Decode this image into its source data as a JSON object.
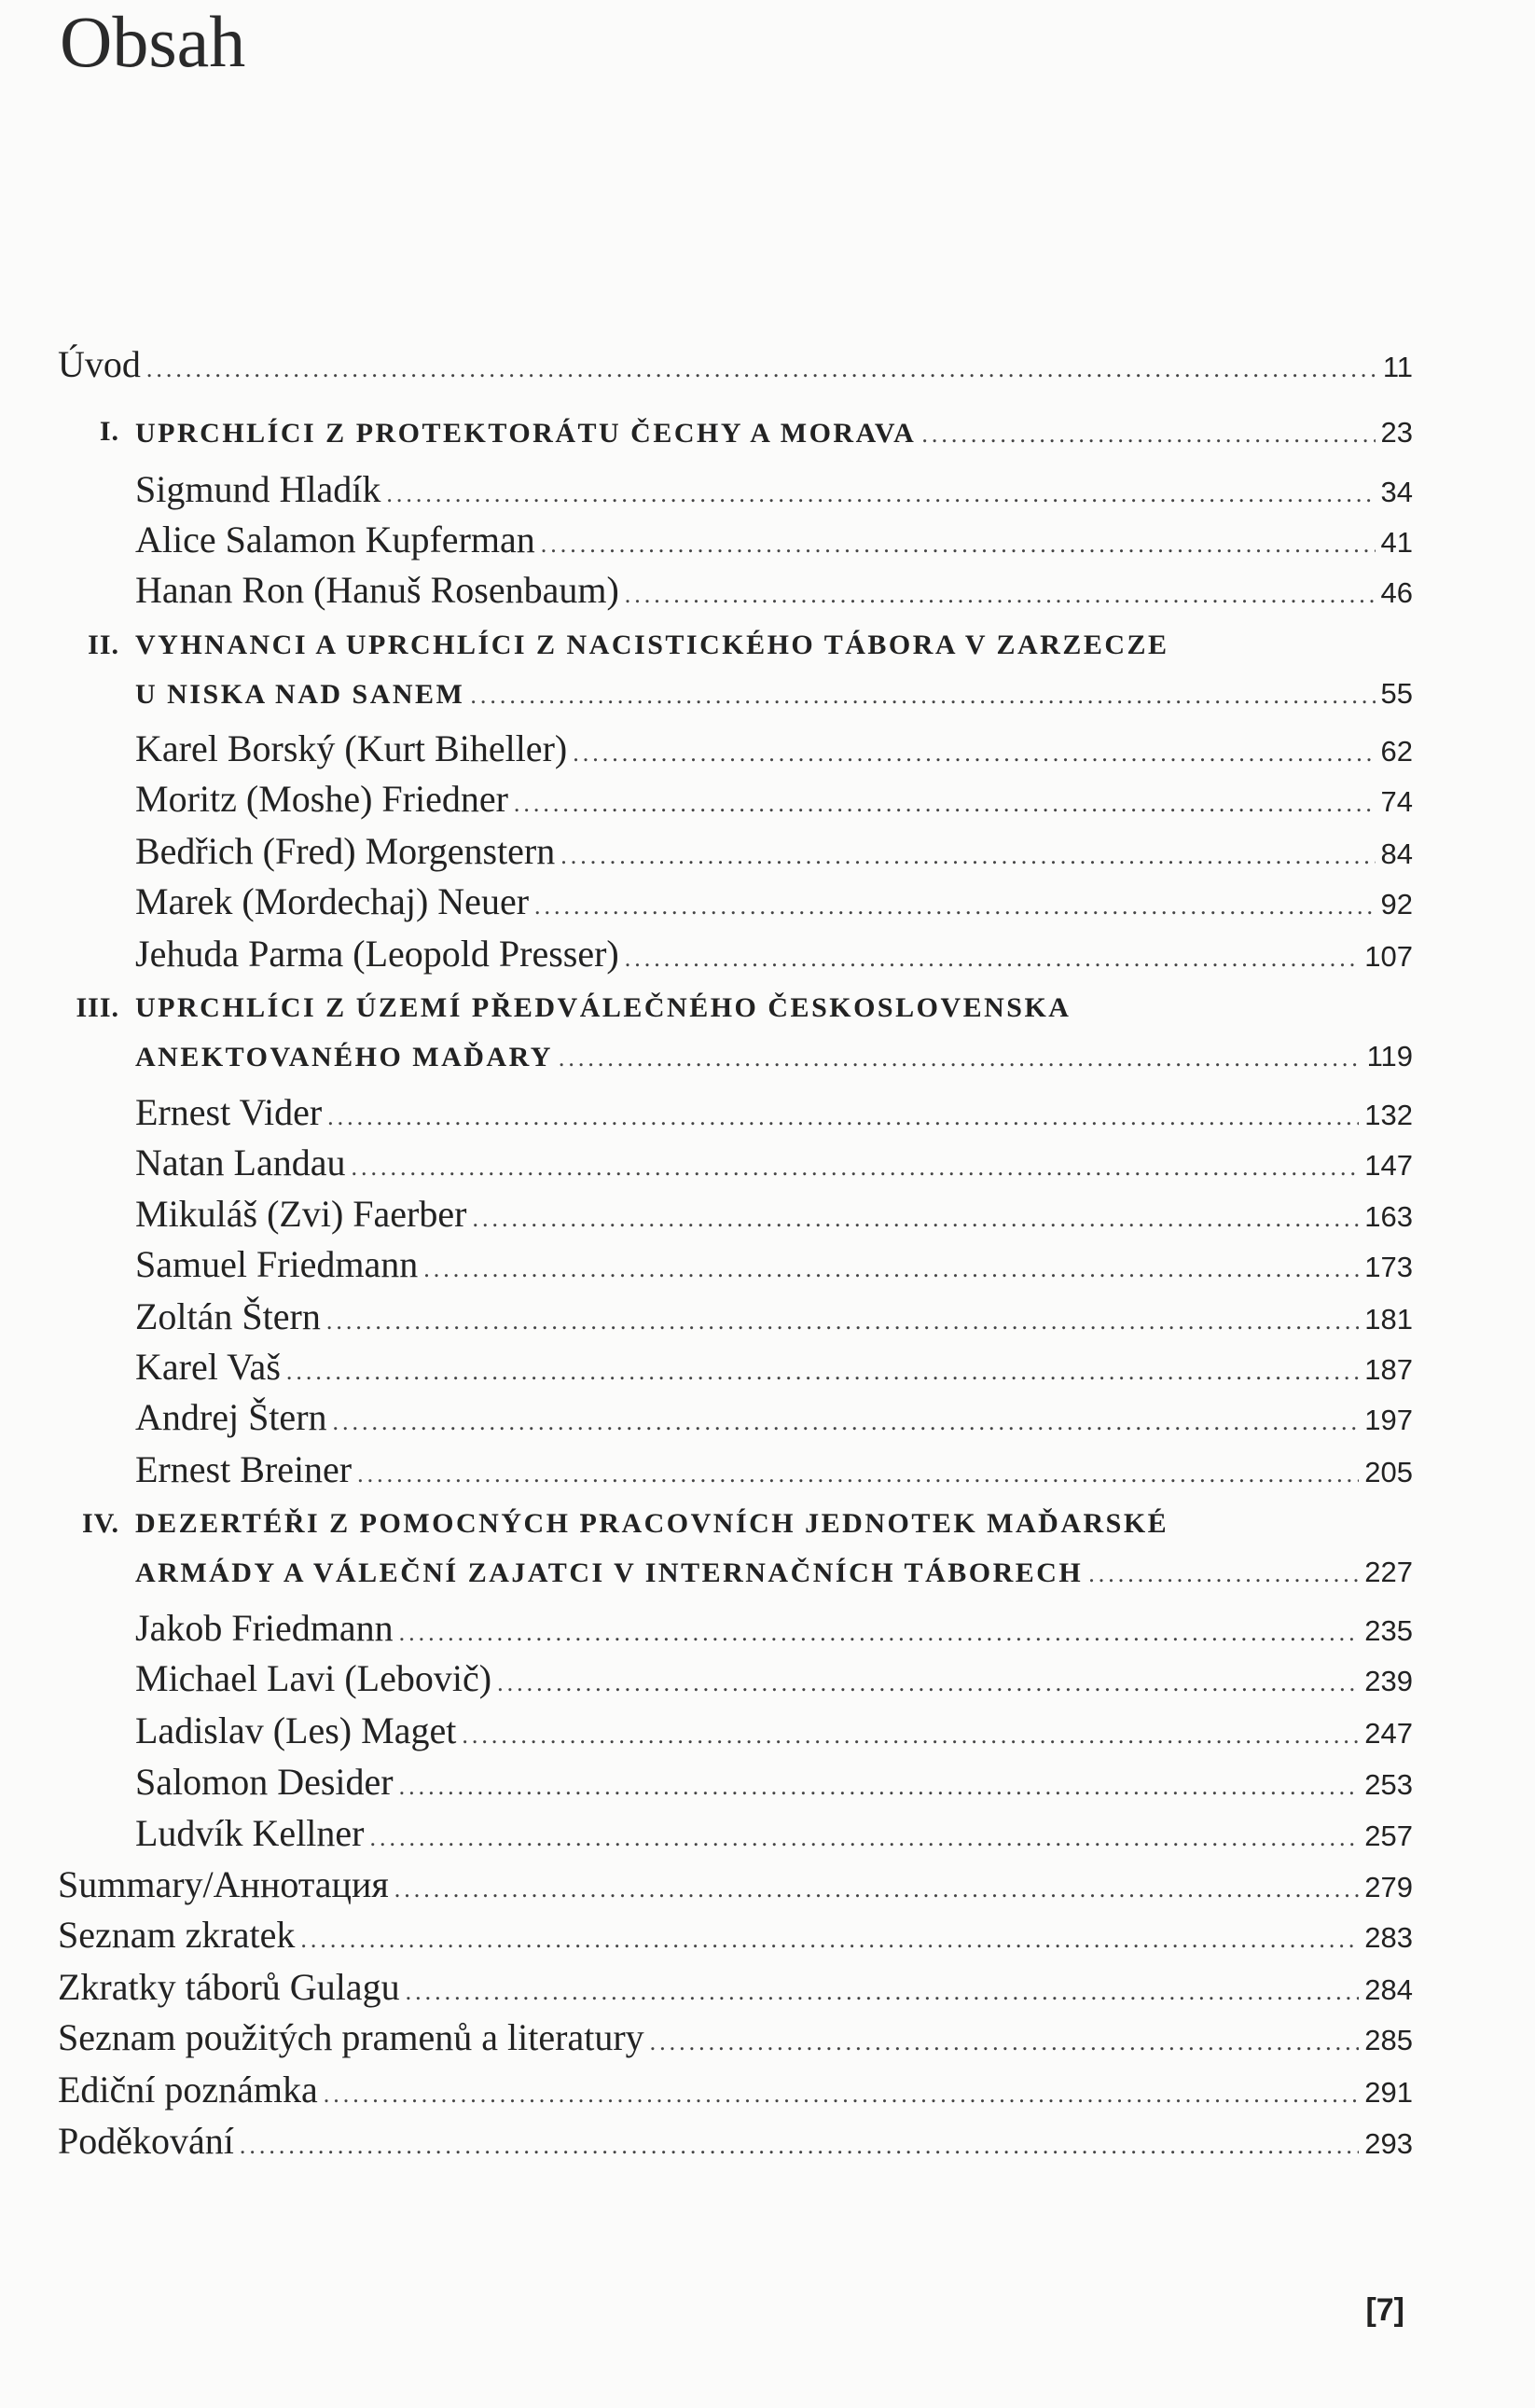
{
  "page_title": "Obsah",
  "folio": "[7]",
  "entries": [
    {
      "level": "top",
      "text": "Úvod",
      "page": "11"
    },
    {
      "level": "section",
      "numeral": "I.",
      "text": "UPRCHLÍCI Z PROTEKTORÁTU ČECHY A MORAVA",
      "page": "23"
    },
    {
      "level": "sub",
      "text": "Sigmund Hladík",
      "page": "34"
    },
    {
      "level": "sub",
      "text": "Alice Salamon Kupferman",
      "page": "41"
    },
    {
      "level": "sub",
      "text": "Hanan Ron (Hanuš Rosenbaum)",
      "page": "46"
    },
    {
      "level": "section",
      "numeral": "II.",
      "text": "VYHNANCI A UPRCHLÍCI Z NACISTICKÉHO TÁBORA V ZARZECZE",
      "page": ""
    },
    {
      "level": "section-cont",
      "text": "U NISKA NAD SANEM",
      "page": "55"
    },
    {
      "level": "sub",
      "text": "Karel Borský (Kurt Biheller)",
      "page": "62"
    },
    {
      "level": "sub",
      "text": "Moritz (Moshe) Friedner",
      "page": "74"
    },
    {
      "level": "sub",
      "text": "Bedřich (Fred) Morgenstern",
      "page": "84"
    },
    {
      "level": "sub",
      "text": "Marek (Mordechaj) Neuer",
      "page": "92"
    },
    {
      "level": "sub",
      "text": "Jehuda Parma (Leopold Presser)",
      "page": "107"
    },
    {
      "level": "section",
      "numeral": "III.",
      "text": "UPRCHLÍCI Z ÚZEMÍ PŘEDVÁLEČNÉHO ČESKOSLOVENSKA",
      "page": ""
    },
    {
      "level": "section-cont",
      "text": "ANEKTOVANÉHO MAĎARY",
      "page": "119"
    },
    {
      "level": "sub",
      "text": "Ernest Vider",
      "page": "132"
    },
    {
      "level": "sub",
      "text": "Natan Landau",
      "page": "147"
    },
    {
      "level": "sub",
      "text": "Mikuláš (Zvi) Faerber",
      "page": "163"
    },
    {
      "level": "sub",
      "text": "Samuel Friedmann",
      "page": "173"
    },
    {
      "level": "sub",
      "text": "Zoltán Štern",
      "page": "181"
    },
    {
      "level": "sub",
      "text": "Karel Vaš",
      "page": "187"
    },
    {
      "level": "sub",
      "text": "Andrej Štern",
      "page": "197"
    },
    {
      "level": "sub",
      "text": "Ernest Breiner",
      "page": "205"
    },
    {
      "level": "section",
      "numeral": "IV.",
      "text": "DEZERTÉŘI Z POMOCNÝCH PRACOVNÍCH JEDNOTEK MAĎARSKÉ",
      "page": ""
    },
    {
      "level": "section-cont",
      "text": "ARMÁDY A VÁLEČNÍ ZAJATCI V INTERNAČNÍCH TÁBORECH",
      "page": "227"
    },
    {
      "level": "sub",
      "text": "Jakob Friedmann",
      "page": "235"
    },
    {
      "level": "sub",
      "text": "Michael Lavi (Lebovič)",
      "page": "239"
    },
    {
      "level": "sub",
      "text": "Ladislav (Les) Maget",
      "page": "247"
    },
    {
      "level": "sub",
      "text": "Salomon Desider",
      "page": "253"
    },
    {
      "level": "sub",
      "text": "Ludvík Kellner",
      "page": "257"
    },
    {
      "level": "top",
      "text": "Summary/Аннотация",
      "page": "279"
    },
    {
      "level": "top",
      "text": "Seznam zkratek",
      "page": "283"
    },
    {
      "level": "top",
      "text": "Zkratky táborů Gulagu",
      "page": "284"
    },
    {
      "level": "top",
      "text": "Seznam použitých pramenů a literatury",
      "page": "285"
    },
    {
      "level": "top",
      "text": "Ediční poznámka",
      "page": "291"
    },
    {
      "level": "top",
      "text": "Poděkování",
      "page": "293"
    }
  ]
}
